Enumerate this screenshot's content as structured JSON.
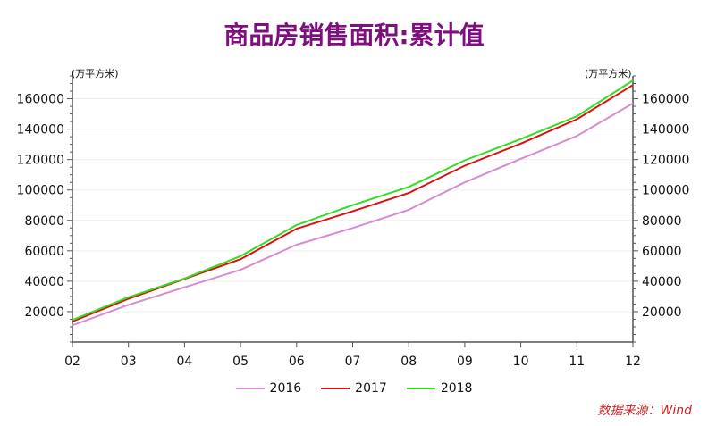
{
  "chart_data": {
    "type": "line",
    "title": "商品房销售面积:累计值",
    "y_unit_left": "(万平方米)",
    "y_unit_right": "(万平方米)",
    "categories": [
      "02",
      "03",
      "04",
      "05",
      "06",
      "07",
      "08",
      "09",
      "10",
      "11",
      "12"
    ],
    "yticks": [
      20000,
      40000,
      60000,
      80000,
      100000,
      120000,
      140000,
      160000
    ],
    "ylim": [
      0,
      175000
    ],
    "grid": true,
    "legend_position": "bottom",
    "series": [
      {
        "name": "2016",
        "color": "#d98bd0",
        "values": [
          11000,
          24500,
          36000,
          47500,
          64000,
          75000,
          87000,
          105000,
          120500,
          135500,
          157000
        ]
      },
      {
        "name": "2017",
        "color": "#dd1111",
        "values": [
          13500,
          28500,
          41500,
          54500,
          74500,
          86000,
          98000,
          116000,
          130500,
          146500,
          169000
        ]
      },
      {
        "name": "2018",
        "color": "#33dd22",
        "values": [
          14500,
          29500,
          41800,
          56500,
          77000,
          90000,
          102000,
          119500,
          133500,
          148500,
          172000
        ]
      }
    ],
    "source": "数据来源：Wind",
    "title_color": "#7f0f7f",
    "source_color": "#cc2222"
  }
}
